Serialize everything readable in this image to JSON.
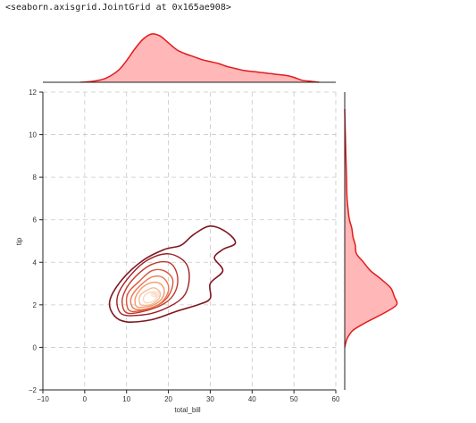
{
  "header": {
    "repr": "<seaborn.axisgrid.JointGrid at 0x165ae908>"
  },
  "chart_data": {
    "type": "kde-joint",
    "xlabel": "total_bill",
    "ylabel": "tip",
    "xlim": [
      -10,
      60
    ],
    "ylim": [
      -2,
      12
    ],
    "xticks": [
      -10,
      0,
      10,
      20,
      30,
      40,
      50,
      60
    ],
    "yticks": [
      -2,
      0,
      2,
      4,
      6,
      8,
      10,
      12
    ],
    "grid": true,
    "colors": {
      "marginal_line": "#e31a1c",
      "marginal_fill": "#ffb7b7",
      "grid": "#c8c8c8",
      "contour_outer": "#7f1520",
      "contour_inner": "#fde8dc"
    },
    "center": {
      "x": 17,
      "y": 2.5
    },
    "contours": [
      {
        "level": 1,
        "color": "#7f1520",
        "points": [
          [
            10,
            1.2
          ],
          [
            7,
            1.5
          ],
          [
            6,
            2.2
          ],
          [
            9,
            3.2
          ],
          [
            14,
            4.1
          ],
          [
            19,
            4.6
          ],
          [
            23,
            4.8
          ],
          [
            26,
            5.3
          ],
          [
            30,
            5.7
          ],
          [
            34,
            5.4
          ],
          [
            36,
            4.9
          ],
          [
            33,
            4.6
          ],
          [
            31,
            4.2
          ],
          [
            33,
            3.6
          ],
          [
            30,
            3.0
          ],
          [
            30,
            2.3
          ],
          [
            27,
            2.0
          ],
          [
            22,
            1.7
          ],
          [
            16,
            1.3
          ]
        ]
      },
      {
        "level": 2,
        "color": "#9e1e26",
        "points": [
          [
            10,
            1.5
          ],
          [
            8,
            1.8
          ],
          [
            8,
            2.5
          ],
          [
            11,
            3.4
          ],
          [
            15,
            4.1
          ],
          [
            20,
            4.4
          ],
          [
            24,
            4.0
          ],
          [
            25,
            3.3
          ],
          [
            24,
            2.5
          ],
          [
            21,
            2.0
          ],
          [
            16,
            1.6
          ]
        ]
      },
      {
        "level": 3,
        "color": "#c0392b",
        "points": [
          [
            10.5,
            1.6
          ],
          [
            9,
            2.0
          ],
          [
            9.5,
            2.6
          ],
          [
            12,
            3.3
          ],
          [
            16,
            3.9
          ],
          [
            20,
            4.0
          ],
          [
            22,
            3.5
          ],
          [
            22,
            2.8
          ],
          [
            20,
            2.2
          ],
          [
            16,
            1.8
          ]
        ]
      },
      {
        "level": 4,
        "color": "#d9553b",
        "points": [
          [
            11,
            1.7
          ],
          [
            10,
            2.1
          ],
          [
            10.5,
            2.6
          ],
          [
            13,
            3.1
          ],
          [
            16,
            3.6
          ],
          [
            19,
            3.6
          ],
          [
            21,
            3.2
          ],
          [
            20.5,
            2.6
          ],
          [
            18.5,
            2.1
          ],
          [
            15,
            1.8
          ]
        ]
      },
      {
        "level": 5,
        "color": "#e8784f",
        "points": [
          [
            12,
            1.8
          ],
          [
            11,
            2.1
          ],
          [
            11.5,
            2.5
          ],
          [
            13.5,
            2.95
          ],
          [
            16,
            3.3
          ],
          [
            18.5,
            3.3
          ],
          [
            20,
            2.9
          ],
          [
            19.5,
            2.4
          ],
          [
            17.5,
            2.0
          ],
          [
            14.5,
            1.8
          ]
        ]
      },
      {
        "level": 6,
        "color": "#f29a6e",
        "points": [
          [
            12.5,
            1.9
          ],
          [
            12,
            2.2
          ],
          [
            12.5,
            2.5
          ],
          [
            14,
            2.85
          ],
          [
            16,
            3.05
          ],
          [
            18,
            3.0
          ],
          [
            19,
            2.7
          ],
          [
            18.5,
            2.3
          ],
          [
            16.5,
            2.0
          ],
          [
            14.5,
            1.9
          ]
        ]
      },
      {
        "level": 7,
        "color": "#f7bb98",
        "points": [
          [
            13.5,
            2.0
          ],
          [
            13,
            2.25
          ],
          [
            13.5,
            2.5
          ],
          [
            15,
            2.7
          ],
          [
            16.5,
            2.8
          ],
          [
            17.8,
            2.65
          ],
          [
            18,
            2.4
          ],
          [
            17,
            2.15
          ],
          [
            15.5,
            2.0
          ]
        ]
      },
      {
        "level": 8,
        "color": "#fbd6c0",
        "points": [
          [
            14.5,
            2.1
          ],
          [
            14,
            2.3
          ],
          [
            14.7,
            2.5
          ],
          [
            15.8,
            2.6
          ],
          [
            17,
            2.5
          ],
          [
            17.1,
            2.3
          ],
          [
            16.2,
            2.15
          ]
        ]
      }
    ],
    "marginal_x": {
      "x": [
        -1,
        2,
        5,
        8,
        10,
        12,
        14,
        16,
        18,
        20,
        22,
        24,
        26,
        28,
        30,
        32,
        34,
        36,
        38,
        40,
        42,
        44,
        46,
        48,
        50,
        52,
        54,
        56
      ],
      "density": [
        0.0,
        0.01,
        0.04,
        0.12,
        0.22,
        0.34,
        0.44,
        0.49,
        0.47,
        0.4,
        0.33,
        0.29,
        0.26,
        0.23,
        0.21,
        0.19,
        0.16,
        0.14,
        0.12,
        0.11,
        0.1,
        0.09,
        0.08,
        0.07,
        0.05,
        0.02,
        0.01,
        0.0
      ]
    },
    "marginal_y": {
      "y": [
        0.0,
        0.4,
        0.8,
        1.2,
        1.6,
        2.0,
        2.4,
        2.8,
        3.2,
        3.6,
        4.0,
        4.4,
        4.8,
        5.2,
        5.6,
        6.0,
        6.4,
        7.0,
        8.0,
        9.0,
        10.0,
        11.2
      ],
      "density": [
        0.0,
        0.02,
        0.07,
        0.19,
        0.33,
        0.44,
        0.42,
        0.39,
        0.31,
        0.22,
        0.16,
        0.1,
        0.09,
        0.07,
        0.06,
        0.04,
        0.03,
        0.02,
        0.015,
        0.01,
        0.005,
        0.0
      ]
    }
  }
}
